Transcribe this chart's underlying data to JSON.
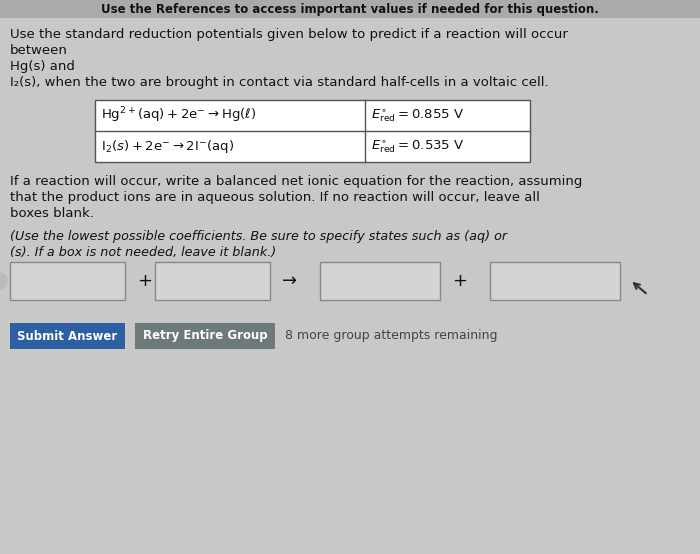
{
  "title_line": "Use the References to access important values if needed for this question.",
  "body_line1": "Use the standard reduction potentials given below to predict if a reaction will occur",
  "body_line2": "between",
  "body_line3": "Hg(s) and",
  "body_line4": "I₂(s), when the two are brought in contact via standard half-cells in a voltaic cell.",
  "para1": "If a reaction will occur, write a balanced net ionic equation for the reaction, assuming",
  "para2": "that the product ions are in aqueous solution. If no reaction will occur, leave all",
  "para3": "boxes blank.",
  "italic1": "(Use the lowest possible coefficients. Be sure to specify states such as (aq) or",
  "italic2": "(s). If a box is not needed, leave it blank.)",
  "btn1_text": "Submit Answer",
  "btn2_text": "Retry Entire Group",
  "remaining_text": "8 more group attempts remaining",
  "bg_color": "#c8c8c8",
  "table_bg": "#ffffff",
  "input_box_color": "#d4d4d4",
  "btn1_color": "#2e5fa3",
  "btn2_color": "#6e7a7a",
  "text_color": "#111111",
  "font_size_title": 8.5,
  "font_size_body": 9.5,
  "font_size_eq": 9.5,
  "font_size_italic": 9.2,
  "font_size_btn": 8.5
}
